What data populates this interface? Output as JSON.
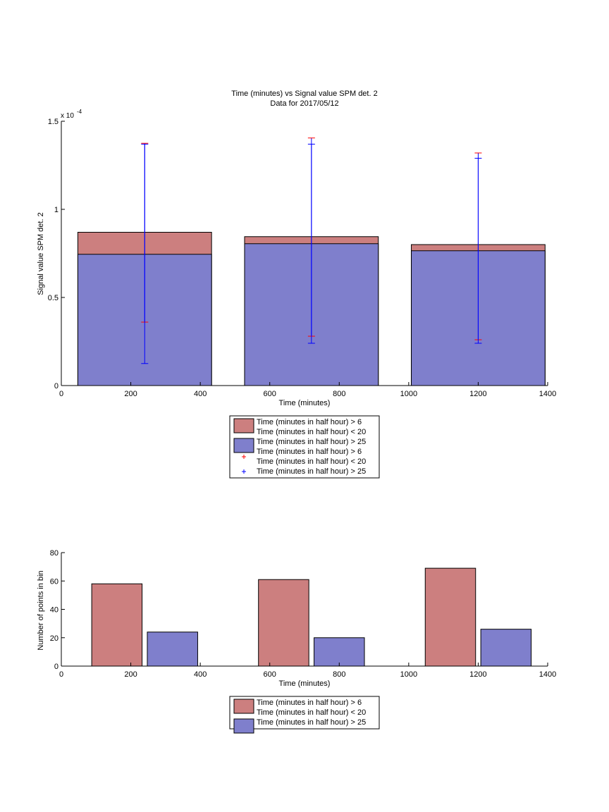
{
  "chart_data": [
    {
      "type": "bar",
      "title": "Time (minutes) vs Signal value SPM det. 2",
      "subtitle": "Data for 2017/05/12",
      "xlabel": "Time (minutes)",
      "ylabel": "Signal value SPM det. 2",
      "y_exponent_label": "x 10",
      "y_exponent_power": "-4",
      "xlim": [
        0,
        1400
      ],
      "ylim": [
        0,
        1.5
      ],
      "xticks": [
        0,
        200,
        400,
        600,
        800,
        1000,
        1200,
        1400
      ],
      "yticks": [
        0,
        0.5,
        1,
        1.5
      ],
      "ytick_labels": [
        "0",
        "0.5",
        "1",
        "1.5"
      ],
      "bar_width": 385,
      "series": [
        {
          "name": "Time (minutes in half hour) > 6\nTime (minutes in half hour) < 20",
          "color": "#cc7f7f",
          "x": [
            240,
            720,
            1200
          ],
          "values": [
            0.87,
            0.845,
            0.8
          ],
          "error_low": [
            0.36,
            0.28,
            0.26
          ],
          "error_high": [
            1.375,
            1.405,
            1.32
          ],
          "error_color": "#ff0000"
        },
        {
          "name": "Time (minutes in half hour) > 25",
          "color": "#7f7fcc",
          "x": [
            240,
            720,
            1200
          ],
          "values": [
            0.745,
            0.805,
            0.765
          ],
          "error_low": [
            0.125,
            0.24,
            0.24
          ],
          "error_high": [
            1.37,
            1.37,
            1.29
          ],
          "error_color": "#0000ff"
        }
      ],
      "legend": {
        "placement": "below",
        "entries": [
          {
            "line1": "Time (minutes in half hour) > 6",
            "line2": "Time (minutes in half hour) < 20",
            "kind": "patch",
            "color": "#cc7f7f"
          },
          {
            "line1": "Time (minutes in half hour) > 25",
            "kind": "patch",
            "color": "#7f7fcc"
          },
          {
            "line1": "Time (minutes in half hour) > 6",
            "line2": "Time (minutes in half hour) < 20",
            "kind": "marker",
            "color": "#ff0000"
          },
          {
            "line1": "Time (minutes in half hour) > 25",
            "kind": "marker",
            "color": "#0000ff"
          }
        ]
      }
    },
    {
      "type": "bar",
      "xlabel": "Time (minutes)",
      "ylabel": "Number of points in bin",
      "xlim": [
        0,
        1400
      ],
      "ylim": [
        0,
        80
      ],
      "xticks": [
        0,
        200,
        400,
        600,
        800,
        1000,
        1200,
        1400
      ],
      "yticks": [
        0,
        20,
        40,
        60,
        80
      ],
      "bar_width": 145,
      "series": [
        {
          "name": "Time (minutes in half hour) > 6\nTime (minutes in half hour) < 20",
          "color": "#cc7f7f",
          "x": [
            160,
            640,
            1120
          ],
          "values": [
            58,
            61,
            69
          ]
        },
        {
          "name": "Time (minutes in half hour) > 25",
          "color": "#7f7fcc",
          "x": [
            320,
            800,
            1280
          ],
          "values": [
            24,
            20,
            26
          ]
        }
      ],
      "legend": {
        "placement": "below",
        "entries": [
          {
            "line1": "Time (minutes in half hour) > 6",
            "line2": "Time (minutes in half hour) < 20",
            "kind": "patch",
            "color": "#cc7f7f"
          },
          {
            "line1": "Time (minutes in half hour) > 25",
            "kind": "patch",
            "color": "#7f7fcc"
          }
        ]
      }
    }
  ]
}
